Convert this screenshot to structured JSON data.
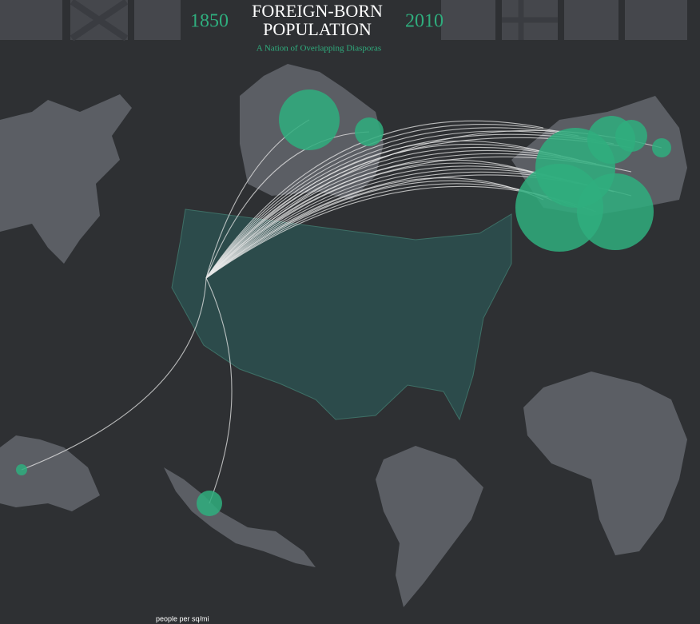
{
  "header": {
    "start_year": "1850",
    "title_lines": [
      "FOREIGN-BORN",
      "POPULATION"
    ],
    "end_year": "2010",
    "subtitle": "A Nation of Overlapping Diasporas"
  },
  "legend": {
    "label": "people per sq/mi"
  }
}
